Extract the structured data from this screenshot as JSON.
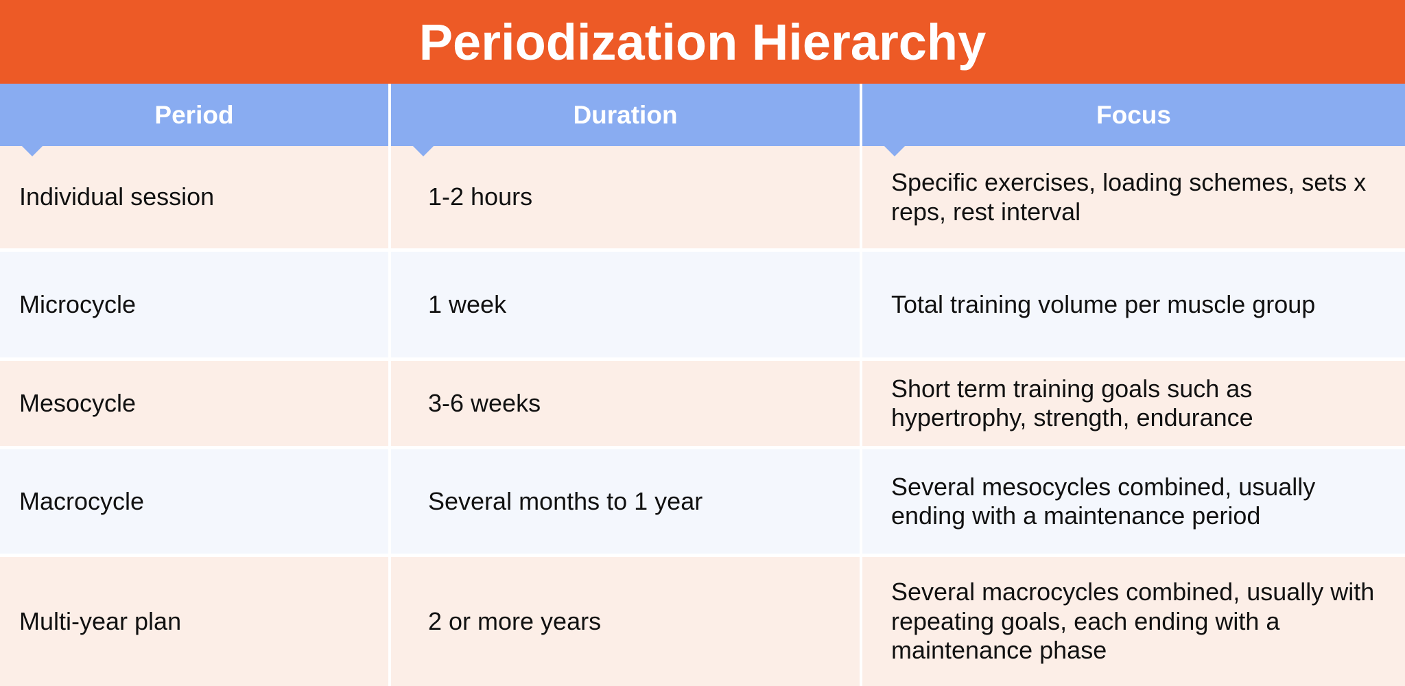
{
  "title": "Periodization Hierarchy",
  "colors": {
    "title_bg": "#ED5A26",
    "header_bg": "#89ACF1",
    "row_peach": "#FCEEE7",
    "row_blue": "#F4F7FD"
  },
  "headers": [
    "Period",
    "Duration",
    "Focus"
  ],
  "rows": [
    {
      "period": "Individual session",
      "duration": "1-2 hours",
      "focus": "Specific exercises, loading schemes, sets x reps, rest interval"
    },
    {
      "period": "Microcycle",
      "duration": "1 week",
      "focus": "Total training volume per muscle group"
    },
    {
      "period": "Mesocycle",
      "duration": "3-6 weeks",
      "focus": "Short term training goals such as hypertrophy, strength, endurance"
    },
    {
      "period": "Macrocycle",
      "duration": "Several months to 1 year",
      "focus": "Several mesocycles combined, usually ending with a maintenance period"
    },
    {
      "period": "Multi-year plan",
      "duration": "2 or more years",
      "focus": "Several macrocycles combined, usually with repeating goals, each ending with a maintenance phase"
    }
  ]
}
